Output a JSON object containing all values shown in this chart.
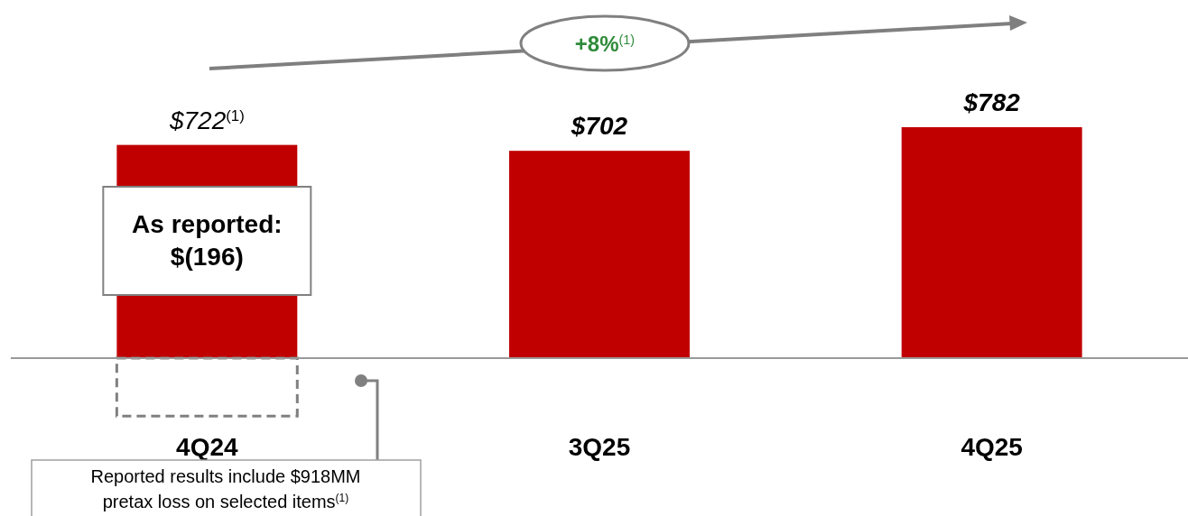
{
  "chart_data": {
    "type": "bar",
    "categories": [
      "4Q24",
      "3Q25",
      "4Q25"
    ],
    "series": [
      {
        "color": "#c00000",
        "values": [
          722,
          702,
          782
        ],
        "value_labels": [
          "$722$^{(1)}$",
          "$702",
          "$782"
        ]
      },
      {
        "color": "#808080",
        "line_style": "dashed",
        "values": [
          -196,
          null,
          null
        ]
      }
    ],
    "annotations": [
      "As reported: $(196)",
      "+8%$^{(1)}$",
      "Reported results include $918MM pretax loss on selected items$^{(1)}$"
    ]
  }
}
